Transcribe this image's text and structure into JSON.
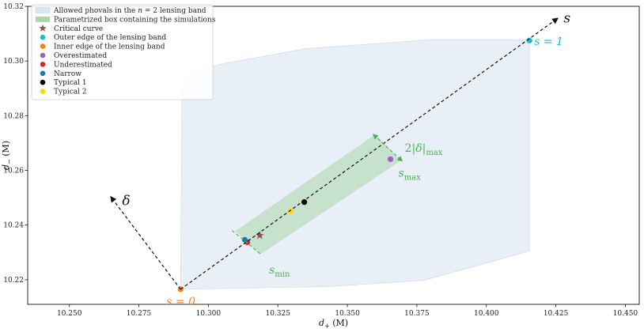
{
  "chart_data": {
    "type": "scatter",
    "title": "",
    "xlabel": "d_+ (M)",
    "ylabel": "d_− (M)",
    "xlim": [
      10.235,
      10.455
    ],
    "ylim": [
      10.211,
      10.32
    ],
    "x_ticks": [
      "10.250",
      "10.275",
      "10.300",
      "10.325",
      "10.350",
      "10.375",
      "10.400",
      "10.425",
      "10.450"
    ],
    "y_ticks": [
      "10.22",
      "10.24",
      "10.26",
      "10.28",
      "10.30",
      "10.32"
    ],
    "grid": false,
    "legend_position": "top-left",
    "lensing_band": {
      "name": "Allowed phovals in the n = 2 lensing band",
      "color": "#dce6f1",
      "polygon": [
        [
          10.29,
          10.2165
        ],
        [
          10.343,
          10.2175
        ],
        [
          10.3775,
          10.2198
        ],
        [
          10.4155,
          10.2305
        ],
        [
          10.4155,
          10.3078
        ],
        [
          10.38,
          10.3078
        ],
        [
          10.335,
          10.3045
        ],
        [
          10.305,
          10.299
        ],
        [
          10.2935,
          10.2955
        ],
        [
          10.2905,
          10.2905
        ],
        [
          10.29,
          10.2165
        ]
      ]
    },
    "simulation_box": {
      "name": "Parametrized box containing the simulations",
      "color": "#a9d6a9",
      "corners": [
        [
          10.3097,
          10.2378
        ],
        [
          10.3186,
          10.2292
        ],
        [
          10.3691,
          10.2635
        ],
        [
          10.3601,
          10.2732
        ]
      ]
    },
    "s_axis": {
      "from": [
        10.29,
        10.2165
      ],
      "to": [
        10.4255,
        10.3155
      ],
      "label": "s"
    },
    "delta_axis": {
      "from": [
        10.29,
        10.2165
      ],
      "to": [
        10.265,
        10.2502
      ],
      "label": "δ"
    },
    "width_arrow": {
      "from": [
        10.3595,
        10.273
      ],
      "to": [
        10.3695,
        10.2636
      ],
      "label": "2|δ|max"
    },
    "s_min_marker": {
      "from": [
        10.3085,
        10.238
      ],
      "to": [
        10.319,
        10.2292
      ],
      "label": "s_min"
    },
    "s_max_marker": {
      "label": "s_max"
    },
    "label_s0": "s = 0",
    "label_s1": "s = 1",
    "series": [
      {
        "name": "Critical curve",
        "marker": "star",
        "color": "#8c564b",
        "x": [
          10.3185
        ],
        "y": [
          10.2362
        ]
      },
      {
        "name": "Outer edge of the lensing band",
        "marker": "circle",
        "color": "#17becf",
        "x": [
          10.4155
        ],
        "y": [
          10.3075
        ]
      },
      {
        "name": "Inner edge of the lensing band",
        "marker": "circle",
        "color": "#ff7f0e",
        "x": [
          10.29
        ],
        "y": [
          10.2165
        ]
      },
      {
        "name": "Overestimated",
        "marker": "circle",
        "color": "#9467bd",
        "x": [
          10.3655
        ],
        "y": [
          10.2641
        ]
      },
      {
        "name": "Underestimated",
        "marker": "circle",
        "color": "#d62728",
        "x": [
          10.314
        ],
        "y": [
          10.2337
        ]
      },
      {
        "name": "Narrow",
        "marker": "circle",
        "color": "#1f77b4",
        "x": [
          10.3131
        ],
        "y": [
          10.2346
        ]
      },
      {
        "name": "Typical 1",
        "marker": "circle",
        "color": "#000000",
        "x": [
          10.3345
        ],
        "y": [
          10.2484
        ]
      },
      {
        "name": "Typical 2",
        "marker": "circle",
        "color": "#ffd700",
        "x": [
          10.3295
        ],
        "y": [
          10.2451
        ]
      }
    ]
  }
}
